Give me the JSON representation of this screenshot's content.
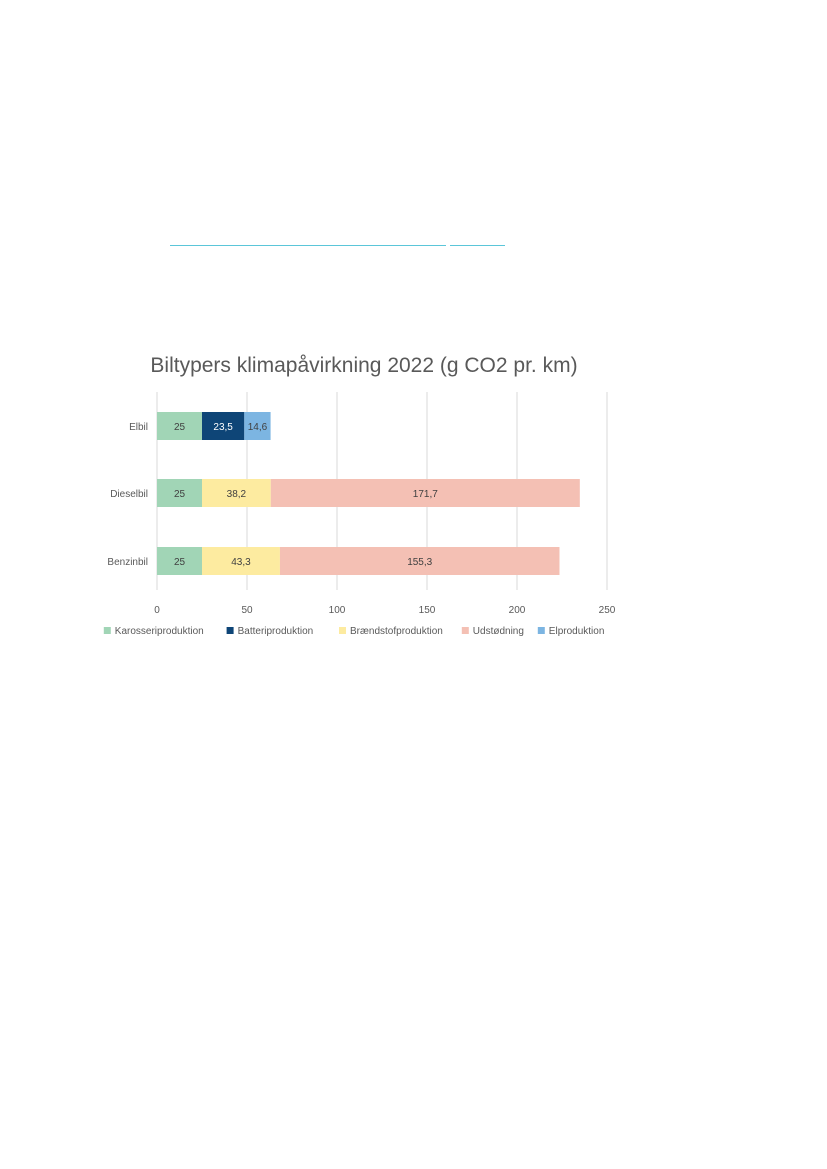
{
  "chart_data": {
    "type": "bar",
    "orientation": "horizontal",
    "stacked": true,
    "title": "Biltypers klimapåvirkning 2022 (g CO2 pr. km)",
    "categories": [
      "Elbil",
      "Dieselbil",
      "Benzinbil"
    ],
    "xlim": [
      0,
      250
    ],
    "xticks": [
      0,
      50,
      100,
      150,
      200,
      250
    ],
    "grid": "vertical",
    "legend_position": "bottom",
    "series": [
      {
        "name": "Karosseriproduktion",
        "color": "#a1d5b6",
        "label_color": "#404040",
        "values": [
          25,
          25,
          25
        ],
        "labels": [
          "25",
          "25",
          "25"
        ]
      },
      {
        "name": "Batteriproduktion",
        "color": "#0e4577",
        "label_color": "#ffffff",
        "values": [
          23.5,
          0,
          0
        ],
        "labels": [
          "23,5",
          "",
          ""
        ]
      },
      {
        "name": "Brændstofproduktion",
        "color": "#fdeba0",
        "label_color": "#404040",
        "values": [
          0,
          38.2,
          43.3
        ],
        "labels": [
          "",
          "38,2",
          "43,3"
        ]
      },
      {
        "name": "Udstødning",
        "color": "#f4c0b4",
        "label_color": "#404040",
        "values": [
          0,
          171.7,
          155.3
        ],
        "labels": [
          "",
          "171,7",
          "155,3"
        ]
      },
      {
        "name": "Elproduktion",
        "color": "#7cb5e2",
        "label_color": "#404040",
        "values": [
          14.6,
          0,
          0
        ],
        "labels": [
          "14,6",
          "",
          ""
        ]
      }
    ]
  }
}
